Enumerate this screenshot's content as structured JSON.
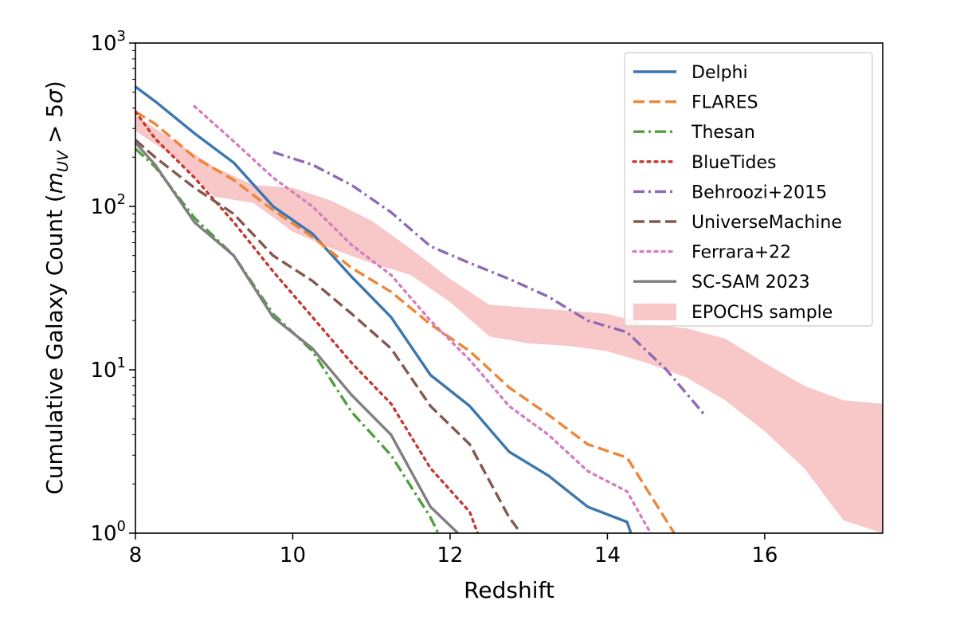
{
  "chart_data": {
    "type": "line",
    "title": "",
    "xlabel": "Redshift",
    "ylabel_prefix": "Cumulative Galaxy Count (",
    "ylabel_math": "m",
    "ylabel_sub": "UV",
    "ylabel_suffix_gt": " > 5",
    "ylabel_sigma": "σ",
    "ylabel_close": ")",
    "xlim": [
      8,
      17.5
    ],
    "ylim": [
      1,
      1000
    ],
    "yscale": "log",
    "x_ticks": [
      {
        "value": 8,
        "label": "8"
      },
      {
        "value": 10,
        "label": "10"
      },
      {
        "value": 12,
        "label": "12"
      },
      {
        "value": 14,
        "label": "14"
      },
      {
        "value": 16,
        "label": "16"
      }
    ],
    "y_ticks": [
      {
        "value": 1,
        "base": "10",
        "exp": "0"
      },
      {
        "value": 10,
        "base": "10",
        "exp": "1"
      },
      {
        "value": 100,
        "base": "10",
        "exp": "2"
      },
      {
        "value": 1000,
        "base": "10",
        "exp": "3"
      }
    ],
    "legend_position": "top-right",
    "series": [
      {
        "name": "Delphi",
        "color": "#3a76af",
        "style": "solid",
        "x": [
          8.0,
          8.25,
          8.75,
          9.25,
          9.75,
          10.25,
          10.75,
          11.25,
          11.75,
          12.25,
          12.75,
          13.25,
          13.75,
          14.25,
          14.3
        ],
        "y": [
          540,
          440,
          280,
          185,
          100,
          68,
          37,
          21,
          9.3,
          6.0,
          3.15,
          2.25,
          1.45,
          1.17,
          1.0
        ]
      },
      {
        "name": "FLARES",
        "color": "#ef8636",
        "style": "dashed",
        "x": [
          8.0,
          8.25,
          8.75,
          9.25,
          9.75,
          10.25,
          10.75,
          11.25,
          11.75,
          12.25,
          12.75,
          13.25,
          13.75,
          14.25,
          14.85
        ],
        "y": [
          380,
          320,
          200,
          145,
          95,
          65,
          42,
          30,
          19,
          13,
          7.8,
          5.3,
          3.5,
          2.9,
          1.0
        ]
      },
      {
        "name": "Thesan",
        "color": "#519e3e",
        "style": "dashdot",
        "x": [
          8.0,
          8.25,
          8.75,
          9.25,
          9.75,
          10.25,
          10.75,
          11.25,
          11.75,
          11.85
        ],
        "y": [
          225,
          175,
          85,
          50,
          22,
          13,
          5.5,
          3.0,
          1.25,
          1.0
        ]
      },
      {
        "name": "BlueTides",
        "color": "#c53932",
        "style": "dotted",
        "x": [
          8.0,
          8.25,
          8.75,
          9.25,
          9.75,
          10.25,
          10.75,
          11.25,
          11.75,
          12.25,
          12.35
        ],
        "y": [
          380,
          260,
          150,
          80,
          40,
          21,
          11,
          6.2,
          2.5,
          1.35,
          1.0
        ]
      },
      {
        "name": "Behroozi+2015",
        "color": "#8d69b8",
        "style": "dashdot",
        "x": [
          9.75,
          10.25,
          10.75,
          11.25,
          11.75,
          12.25,
          12.75,
          13.25,
          13.75,
          14.25,
          14.75,
          15.25
        ],
        "y": [
          215,
          180,
          135,
          92,
          57,
          45,
          36,
          28,
          20,
          17,
          10,
          5.2
        ]
      },
      {
        "name": "UniverseMachine",
        "color": "#84584e",
        "style": "dashed",
        "x": [
          8.0,
          8.25,
          8.75,
          9.25,
          9.75,
          10.25,
          10.75,
          11.25,
          11.75,
          12.25,
          12.75,
          12.9
        ],
        "y": [
          255,
          200,
          130,
          90,
          50,
          35,
          22,
          13.5,
          6.0,
          3.5,
          1.25,
          1.0
        ]
      },
      {
        "name": "Ferrara+22",
        "color": "#d57dbe",
        "style": "dotted",
        "x": [
          8.75,
          9.25,
          9.75,
          10.25,
          10.75,
          11.25,
          11.75,
          12.25,
          12.75,
          13.25,
          13.75,
          14.25,
          14.55
        ],
        "y": [
          410,
          250,
          150,
          100,
          58,
          38,
          20,
          11.5,
          6.0,
          4.0,
          2.4,
          1.8,
          1.0
        ]
      },
      {
        "name": "SC-SAM 2023",
        "color": "#7f7f7f",
        "style": "solid",
        "x": [
          8.0,
          8.25,
          8.75,
          9.25,
          9.75,
          10.25,
          10.75,
          11.25,
          11.75,
          12.1
        ],
        "y": [
          245,
          180,
          80,
          50,
          21,
          13.5,
          7.0,
          4.0,
          1.45,
          1.0
        ]
      }
    ],
    "band": {
      "name": "EPOCHS sample",
      "color": "#f3a4a4",
      "x": [
        8.0,
        8.5,
        9.0,
        9.5,
        10.0,
        10.5,
        11.0,
        11.5,
        12.0,
        12.5,
        13.0,
        13.5,
        14.0,
        14.5,
        15.0,
        15.5,
        16.0,
        16.5,
        17.0,
        17.5
      ],
      "lower": [
        290,
        200,
        115,
        105,
        70,
        55,
        45,
        38,
        26,
        16,
        14.5,
        14,
        13,
        11,
        9,
        6.5,
        4.2,
        2.5,
        1.2,
        1.0
      ],
      "upper": [
        360,
        250,
        175,
        135,
        130,
        108,
        82,
        55,
        36,
        25,
        24,
        23,
        22,
        19,
        18,
        15.5,
        11,
        8,
        6.5,
        6.2
      ]
    }
  }
}
